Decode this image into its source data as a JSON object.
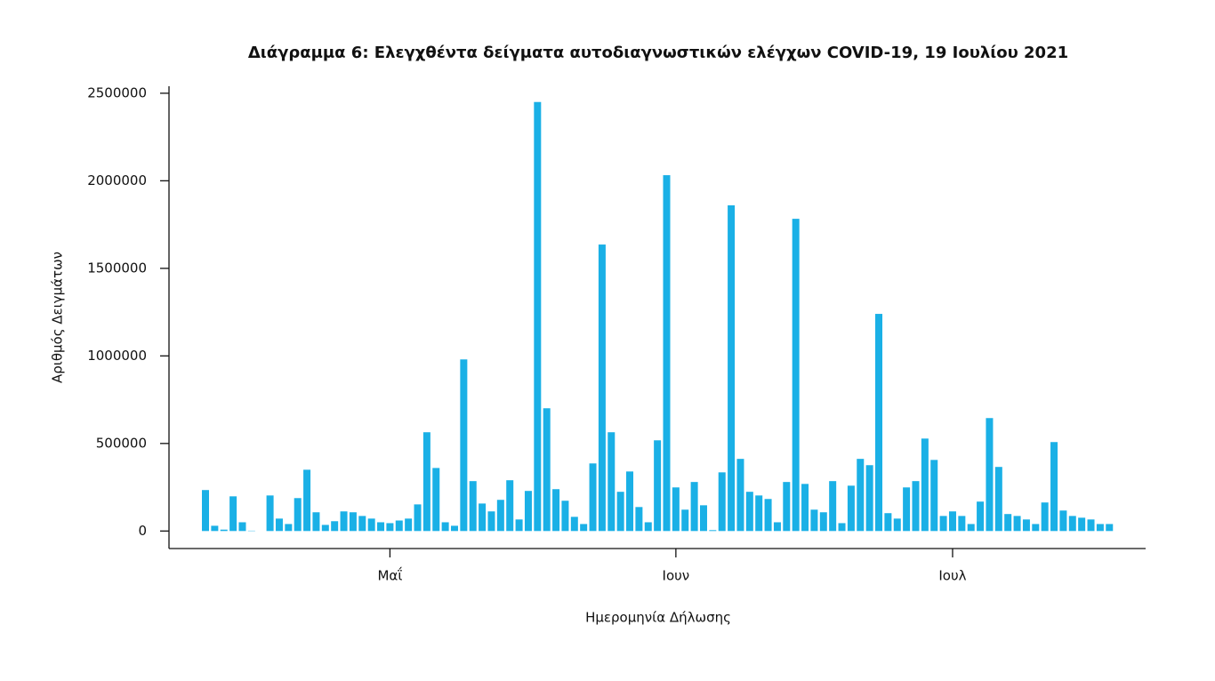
{
  "chart_data": {
    "type": "bar",
    "title": "Διάγραμμα 6: Ελεγχθέντα δείγματα αυτοδιαγνωστικών ελέγχων COVID-19, 19 Ιουλίου 2021",
    "xlabel": "Ημερομηνία Δήλωσης",
    "ylabel": "Αριθμός Δειγμάτων",
    "color": "#1ab0e6",
    "categories": [
      null,
      null,
      null,
      null,
      null,
      null,
      null,
      null,
      null,
      null,
      null,
      null,
      null,
      null,
      null,
      null,
      null,
      null,
      null,
      null,
      "Μαΐ",
      null,
      null,
      null,
      null,
      null,
      null,
      null,
      null,
      null,
      null,
      null,
      null,
      null,
      null,
      null,
      null,
      null,
      null,
      null,
      null,
      null,
      null,
      null,
      null,
      null,
      null,
      null,
      null,
      null,
      null,
      "Ιουν",
      null,
      null,
      null,
      null,
      null,
      null,
      null,
      null,
      null,
      null,
      null,
      null,
      null,
      null,
      null,
      null,
      null,
      null,
      null,
      null,
      null,
      null,
      null,
      null,
      null,
      null,
      null,
      null,
      null,
      "Ιουλ",
      null,
      null,
      null,
      null,
      null,
      null,
      null,
      null,
      null,
      null,
      null,
      null,
      null,
      null,
      null,
      null,
      null
    ],
    "values": [
      234000,
      30000,
      8000,
      198000,
      50000,
      2000,
      0,
      203000,
      71000,
      40000,
      188000,
      350000,
      107000,
      35000,
      56000,
      112000,
      107000,
      86000,
      71000,
      50000,
      45000,
      60000,
      71000,
      152000,
      564000,
      360000,
      50000,
      30000,
      980000,
      285000,
      157000,
      112000,
      178000,
      290000,
      66000,
      229000,
      2450000,
      701000,
      239000,
      173000,
      81000,
      40000,
      386000,
      1636000,
      564000,
      224000,
      340000,
      137000,
      50000,
      518000,
      2032000,
      249000,
      122000,
      280000,
      147000,
      5000,
      335000,
      1860000,
      412000,
      224000,
      203000,
      183000,
      50000,
      280000,
      1783000,
      269000,
      122000,
      107000,
      285000,
      45000,
      259000,
      412000,
      376000,
      1240000,
      102000,
      71000,
      249000,
      285000,
      528000,
      406000,
      86000,
      112000,
      86000,
      40000,
      168000,
      645000,
      366000,
      97000,
      86000,
      66000,
      40000,
      163000,
      508000,
      117000,
      86000,
      76000,
      66000,
      40000,
      40000
    ],
    "ylim": [
      -100000,
      2540000
    ],
    "yticks": [
      0,
      500000,
      1000000,
      1500000,
      2000000,
      2500000
    ]
  }
}
